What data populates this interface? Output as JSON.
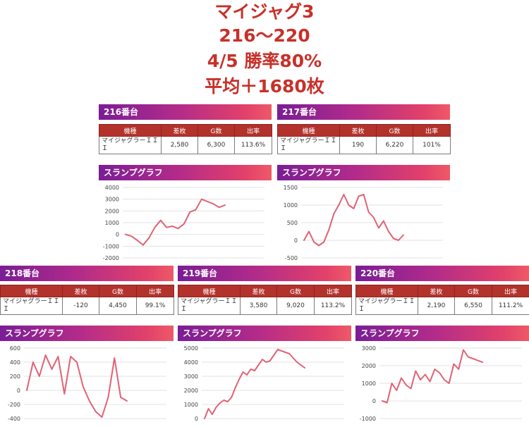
{
  "headline": {
    "line1": "マイジャグ3",
    "line2": "216〜220",
    "line3": "4/5 勝率80%",
    "line4": "平均＋1680枚"
  },
  "table_headers": [
    "機種",
    "差枚",
    "G数",
    "出率"
  ],
  "graph_title": "スランプグラフ",
  "colors": {
    "header_red": "#b3322c",
    "line": "#e06275",
    "headline": "#c8302a"
  },
  "machines": [
    {
      "id": "216",
      "title": "216番台",
      "model": "マイジャグラーＩＩＩ",
      "diff": "2,580",
      "games": "6,300",
      "rate": "113.6%"
    },
    {
      "id": "217",
      "title": "217番台",
      "model": "マイジャグラーＩＩＩ",
      "diff": "190",
      "games": "6,220",
      "rate": "101%"
    },
    {
      "id": "218",
      "title": "218番台",
      "model": "マイジャグラーＩＩＩ",
      "diff": "-120",
      "games": "4,450",
      "rate": "99.1%"
    },
    {
      "id": "219",
      "title": "219番台",
      "model": "マイジャグラーＩＩＩ",
      "diff": "3,580",
      "games": "9,020",
      "rate": "113.2%"
    },
    {
      "id": "220",
      "title": "220番台",
      "model": "マイジャグラーＩＩＩ",
      "diff": "2,190",
      "games": "6,550",
      "rate": "111.2%"
    }
  ],
  "chart_data": [
    {
      "type": "line",
      "id": "216",
      "title": "スランプグラフ",
      "ylim": [
        -2000,
        4000
      ],
      "yticks": [
        -2000,
        -1000,
        0,
        1000,
        2000,
        3000,
        4000
      ],
      "y": [
        0,
        -150,
        -500,
        -900,
        -300,
        600,
        1200,
        600,
        700,
        500,
        900,
        1900,
        2100,
        3000,
        2800,
        2600,
        2300,
        2500
      ]
    },
    {
      "type": "line",
      "id": "217",
      "title": "スランプグラフ",
      "ylim": [
        -500,
        1500
      ],
      "yticks": [
        -500,
        0,
        500,
        1000,
        1500
      ],
      "y": [
        0,
        250,
        -50,
        -150,
        -50,
        300,
        750,
        1000,
        1300,
        1000,
        900,
        1250,
        1300,
        800,
        650,
        350,
        550,
        250,
        50,
        0,
        150
      ]
    },
    {
      "type": "line",
      "id": "218",
      "title": "スランプグラフ",
      "ylim": [
        -400,
        600
      ],
      "yticks": [
        -400,
        -200,
        0,
        200,
        400,
        600
      ],
      "y": [
        0,
        400,
        200,
        500,
        300,
        480,
        -50,
        480,
        400,
        50,
        -150,
        -300,
        -380,
        -100,
        460,
        -100,
        -150
      ]
    },
    {
      "type": "line",
      "id": "219",
      "title": "スランプグラフ",
      "ylim": [
        0,
        5000
      ],
      "yticks": [
        0,
        1000,
        2000,
        3000,
        4000,
        5000
      ],
      "y": [
        0,
        700,
        300,
        800,
        1100,
        1300,
        1200,
        1500,
        2200,
        2800,
        3300,
        3100,
        3500,
        3400,
        3800,
        4200,
        4000,
        4100,
        4500,
        4900,
        4800,
        4700,
        4600,
        4300,
        4000,
        3800,
        3600
      ]
    },
    {
      "type": "line",
      "id": "220",
      "title": "スランプグラフ",
      "ylim": [
        -1000,
        3000
      ],
      "yticks": [
        -1000,
        0,
        1000,
        2000,
        3000
      ],
      "y": [
        0,
        -100,
        1000,
        600,
        1300,
        900,
        700,
        1700,
        1200,
        1500,
        1100,
        1800,
        1600,
        1200,
        1000,
        2100,
        1800,
        2900,
        2500,
        2400,
        2300,
        2200
      ]
    }
  ]
}
